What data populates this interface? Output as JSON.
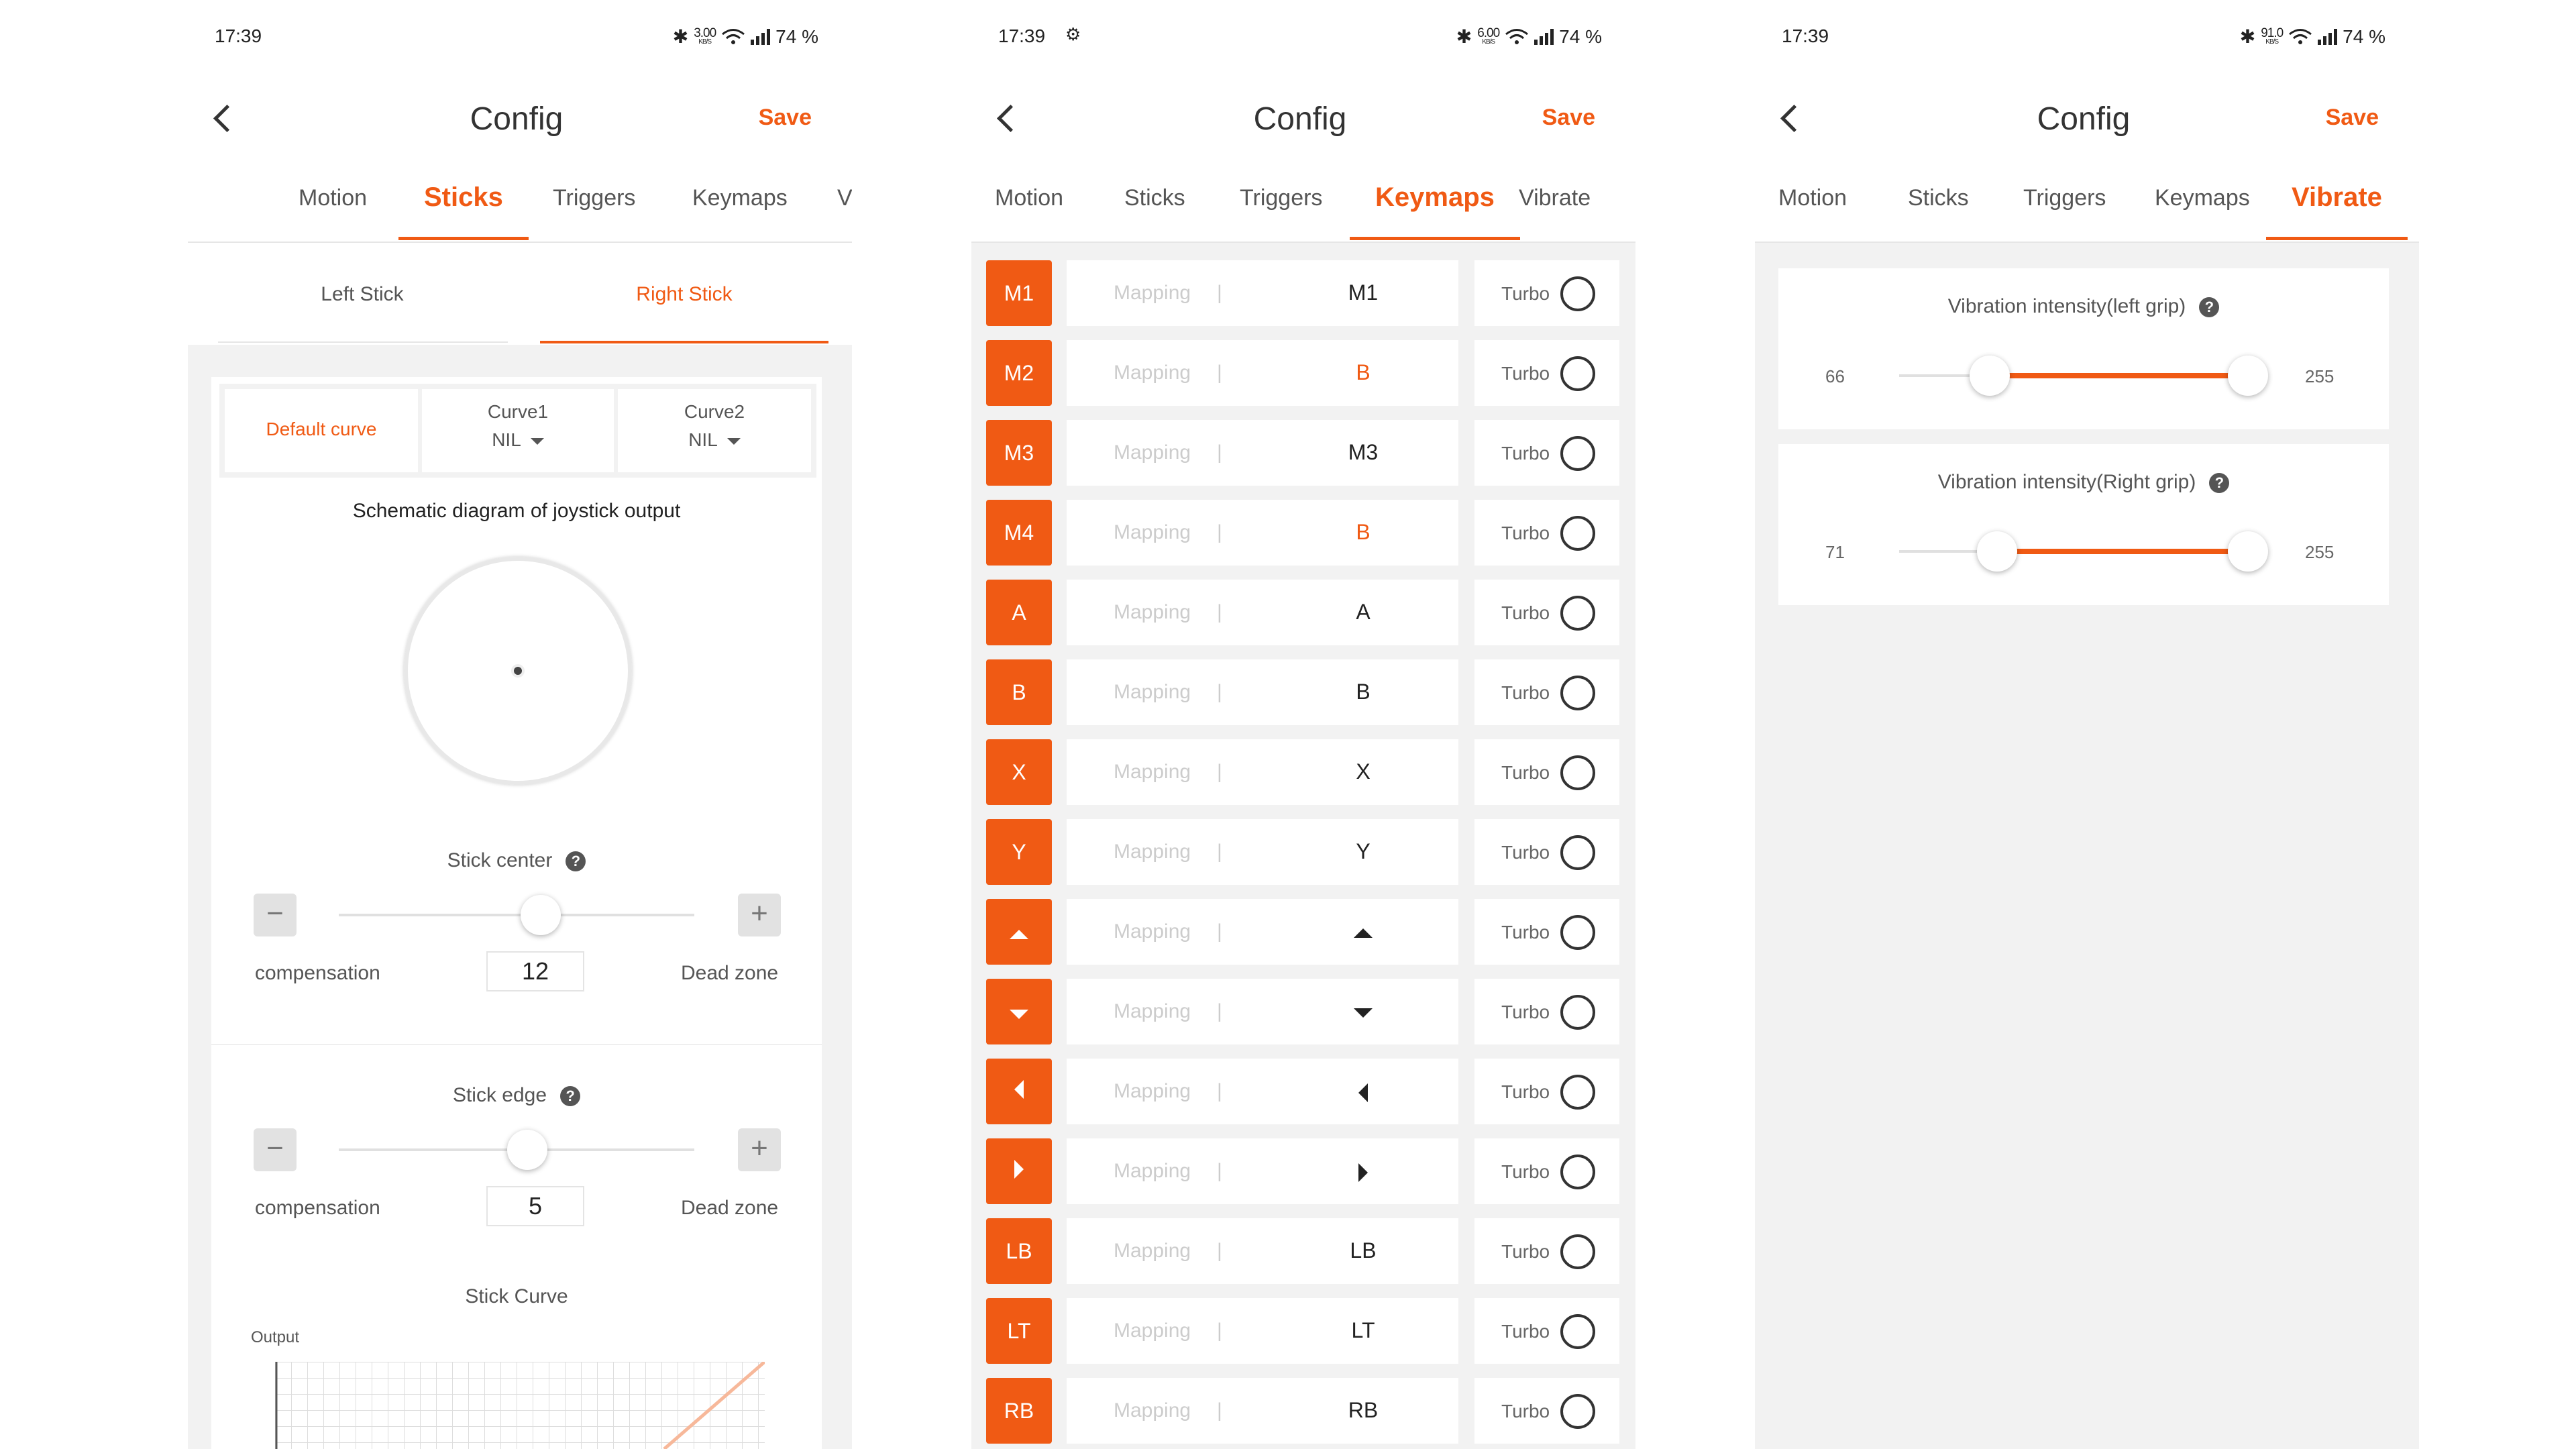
{
  "status": [
    {
      "time": "17:39",
      "extra": "",
      "speed": "3.00",
      "unit": "KB/S",
      "battery": "74 %"
    },
    {
      "time": "17:39",
      "extra": "⚙",
      "speed": "6.00",
      "unit": "KB/S",
      "battery": "74 %"
    },
    {
      "time": "17:39",
      "extra": "",
      "speed": "91.0",
      "unit": "KB/S",
      "battery": "74 %"
    }
  ],
  "header": {
    "title": "Config",
    "save": "Save"
  },
  "tabs": {
    "motion": "Motion",
    "sticks": "Sticks",
    "triggers": "Triggers",
    "keymaps": "Keymaps",
    "vibrate": "Vibrate",
    "vibrate_cut": "Vi"
  },
  "accent": "#f05a14",
  "sticks": {
    "left_stick": "Left Stick",
    "right_stick": "Right Stick",
    "default_curve": "Default curve",
    "curve1": "Curve1",
    "curve2": "Curve2",
    "curve1_value": "NIL",
    "curve2_value": "NIL",
    "schematic_title": "Schematic diagram of joystick output",
    "center": {
      "title": "Stick center",
      "left_label": "compensation",
      "right_label": "Dead zone",
      "value": "12",
      "minus": "−",
      "plus": "+"
    },
    "edge": {
      "title": "Stick edge",
      "left_label": "compensation",
      "right_label": "Dead zone",
      "value": "5",
      "minus": "−",
      "plus": "+"
    },
    "curve_title": "Stick Curve",
    "output_label": "Output"
  },
  "keymaps": {
    "mapping_label": "Mapping",
    "separator": "|",
    "turbo_label": "Turbo",
    "rows": [
      {
        "key": "M1",
        "value": "M1",
        "highlight": false
      },
      {
        "key": "M2",
        "value": "B",
        "highlight": true
      },
      {
        "key": "M3",
        "value": "M3",
        "highlight": false
      },
      {
        "key": "M4",
        "value": "B",
        "highlight": true
      },
      {
        "key": "A",
        "value": "A",
        "highlight": false
      },
      {
        "key": "B",
        "value": "B",
        "highlight": false
      },
      {
        "key": "X",
        "value": "X",
        "highlight": false
      },
      {
        "key": "Y",
        "value": "Y",
        "highlight": false
      },
      {
        "key": "dpad-up",
        "value": "dpad-up",
        "icon": "up"
      },
      {
        "key": "dpad-down",
        "value": "dpad-down",
        "icon": "down"
      },
      {
        "key": "dpad-left",
        "value": "dpad-left",
        "icon": "left"
      },
      {
        "key": "dpad-right",
        "value": "dpad-right",
        "icon": "right"
      },
      {
        "key": "LB",
        "value": "LB",
        "highlight": false
      },
      {
        "key": "LT",
        "value": "LT",
        "highlight": false
      },
      {
        "key": "RB",
        "value": "RB",
        "highlight": false
      }
    ]
  },
  "vibrate": {
    "left": {
      "title": "Vibration intensity(left grip)",
      "min": "66",
      "max": "255",
      "low_level": 0.26,
      "high_level": 1.0
    },
    "right": {
      "title": "Vibration intensity(Right grip)",
      "min": "71",
      "max": "255",
      "low_level": 0.28,
      "high_level": 1.0
    },
    "help": "?"
  }
}
